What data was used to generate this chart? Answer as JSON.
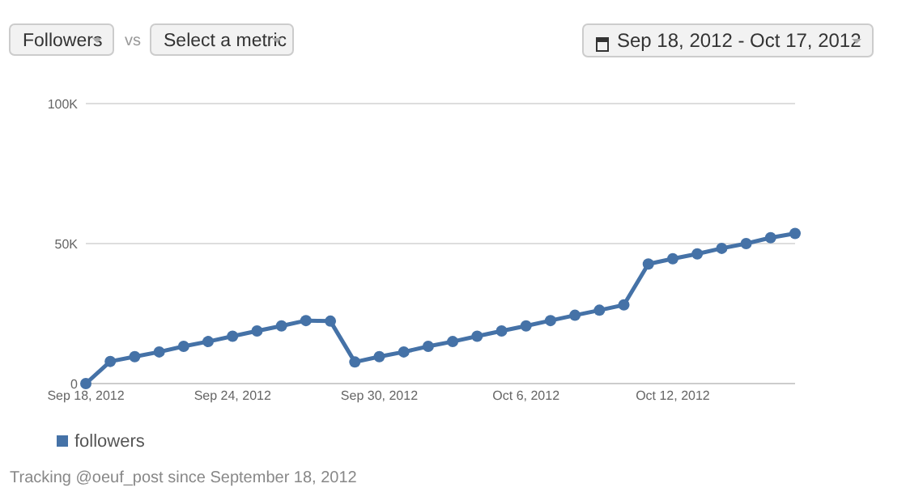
{
  "chart_data": {
    "type": "line",
    "annotations": [
      "Followers",
      "vs",
      "Select a metric",
      "Sep 18, 2012 - Oct 17, 2012",
      "Tracking @oeuf_post since September 18, 2012"
    ],
    "x": [
      "2012-09-18",
      "2012-09-19",
      "2012-09-20",
      "2012-09-21",
      "2012-09-22",
      "2012-09-23",
      "2012-09-24",
      "2012-09-25",
      "2012-09-26",
      "2012-09-27",
      "2012-09-28",
      "2012-09-29",
      "2012-09-30",
      "2012-10-01",
      "2012-10-02",
      "2012-10-03",
      "2012-10-04",
      "2012-10-05",
      "2012-10-06",
      "2012-10-07",
      "2012-10-08",
      "2012-10-09",
      "2012-10-10",
      "2012-10-11",
      "2012-10-12",
      "2012-10-13",
      "2012-10-14",
      "2012-10-15",
      "2012-10-16",
      "2012-10-17"
    ],
    "series": [
      {
        "name": "followers",
        "color": "#4572a7",
        "values": [
          0,
          7900,
          9600,
          11300,
          13300,
          15000,
          16900,
          18800,
          20600,
          22500,
          22300,
          7700,
          9600,
          11300,
          13300,
          15000,
          16900,
          18800,
          20600,
          22500,
          24400,
          26200,
          28100,
          42700,
          44600,
          46300,
          48300,
          50000,
          52100,
          53600
        ]
      }
    ],
    "xlim": [
      "2012-09-18",
      "2012-10-17"
    ],
    "xticks": [
      {
        "value": "2012-09-18",
        "label": "Sep 18, 2012"
      },
      {
        "value": "2012-09-24",
        "label": "Sep 24, 2012"
      },
      {
        "value": "2012-09-30",
        "label": "Sep 30, 2012"
      },
      {
        "value": "2012-10-06",
        "label": "Oct 6, 2012"
      },
      {
        "value": "2012-10-12",
        "label": "Oct 12, 2012"
      }
    ],
    "ylim": [
      0,
      100000
    ],
    "yticks": [
      0,
      {
        "value": 50000,
        "label": "50K"
      },
      {
        "value": 100000,
        "label": "100K"
      }
    ],
    "grid": "y",
    "legend": "bottom left",
    "marker": "circle",
    "line_style": "solid"
  }
}
